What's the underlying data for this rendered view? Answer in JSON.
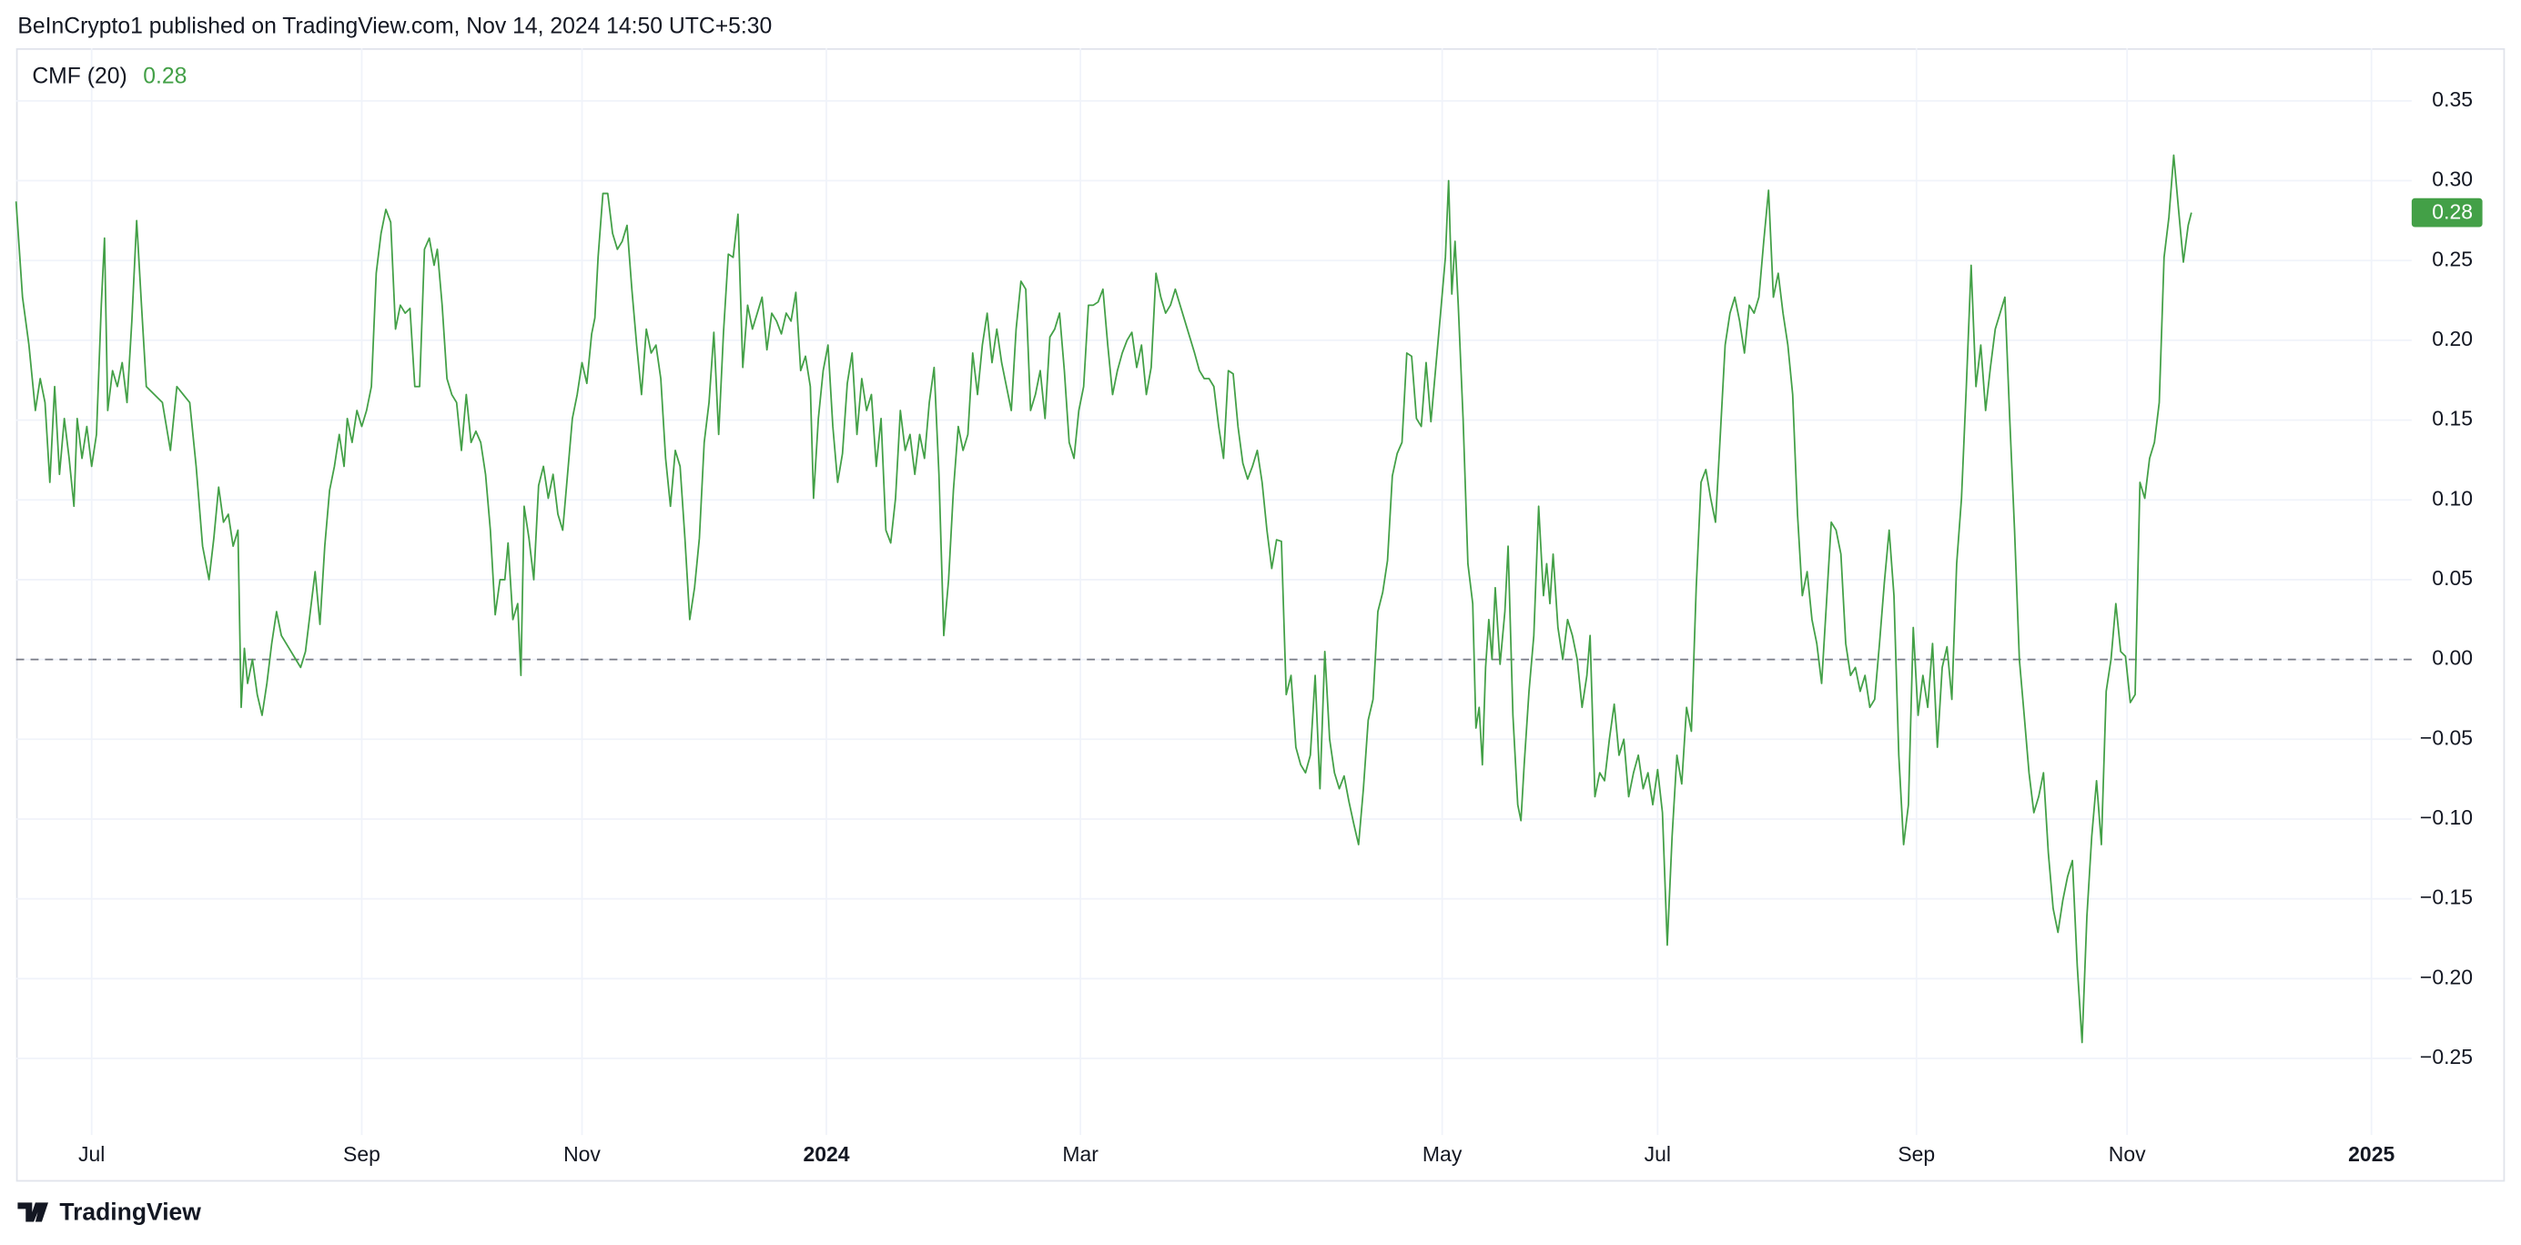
{
  "chart_data": {
    "type": "line",
    "title": "BeInCrypto1 published on TradingView.com, Nov 14, 2024 14:50 UTC+5:30",
    "branding": "TradingView",
    "last_value": 0.28,
    "grid": true,
    "dashed_zero_line": true,
    "xlim": [
      0,
      1490
    ],
    "xticks": [
      {
        "value": 47,
        "label": "Jul"
      },
      {
        "value": 215,
        "label": "Sep"
      },
      {
        "value": 352,
        "label": "Nov"
      },
      {
        "value": 504,
        "label": "2024"
      },
      {
        "value": 662,
        "label": "Mar"
      },
      {
        "value": 887,
        "label": "May"
      },
      {
        "value": 1021,
        "label": "Jul"
      },
      {
        "value": 1182,
        "label": "Sep"
      },
      {
        "value": 1313,
        "label": "Nov"
      },
      {
        "value": 1465,
        "label": "2025"
      }
    ],
    "ylim": [
      -0.298,
      0.383
    ],
    "yticks": [
      0.35,
      {
        "value": 0.3,
        "label": "0.30"
      },
      0.25,
      {
        "value": 0.2,
        "label": "0.20"
      },
      0.15,
      {
        "value": 0.1,
        "label": "0.10"
      },
      0.05,
      {
        "value": 0,
        "label": "0.00"
      },
      {
        "value": -0.05,
        "label": "−0.05"
      },
      {
        "value": -0.1,
        "label": "−0.10"
      },
      {
        "value": -0.15,
        "label": "−0.15"
      },
      {
        "value": -0.2,
        "label": "−0.20"
      },
      {
        "value": -0.25,
        "label": "−0.25"
      }
    ],
    "x": [
      0,
      4,
      8,
      12,
      15,
      18,
      21,
      24,
      27,
      30,
      33,
      36,
      38,
      41,
      44,
      47,
      50,
      53,
      55,
      57,
      60,
      63,
      66,
      69,
      72,
      75,
      78,
      81,
      86,
      91,
      96,
      100,
      104,
      108,
      112,
      116,
      120,
      123,
      126,
      129,
      132,
      135,
      138,
      140,
      142,
      144,
      147,
      150,
      153,
      156,
      159,
      162,
      165,
      168,
      171,
      174,
      177,
      180,
      183,
      186,
      189,
      192,
      195,
      198,
      201,
      204,
      206,
      209,
      212,
      215,
      218,
      221,
      224,
      227,
      230,
      233,
      236,
      239,
      242,
      245,
      248,
      251,
      254,
      257,
      260,
      262,
      265,
      268,
      271,
      274,
      277,
      280,
      283,
      286,
      289,
      292,
      295,
      298,
      301,
      304,
      306,
      309,
      312,
      314,
      316,
      319,
      322,
      325,
      328,
      331,
      334,
      337,
      340,
      343,
      346,
      349,
      352,
      355,
      358,
      360,
      362,
      365,
      368,
      371,
      374,
      377,
      380,
      383,
      386,
      389,
      392,
      395,
      398,
      401,
      404,
      407,
      410,
      413,
      416,
      419,
      422,
      425,
      428,
      431,
      434,
      437,
      440,
      443,
      446,
      449,
      452,
      455,
      458,
      461,
      464,
      467,
      470,
      473,
      476,
      479,
      482,
      485,
      488,
      491,
      494,
      496,
      499,
      502,
      505,
      508,
      511,
      514,
      517,
      520,
      523,
      526,
      529,
      532,
      535,
      538,
      541,
      544,
      547,
      550,
      553,
      556,
      559,
      562,
      565,
      568,
      571,
      574,
      577,
      580,
      583,
      586,
      589,
      592,
      595,
      598,
      601,
      604,
      607,
      610,
      613,
      616,
      619,
      622,
      625,
      628,
      631,
      634,
      637,
      640,
      643,
      646,
      649,
      652,
      655,
      658,
      661,
      664,
      667,
      670,
      673,
      676,
      679,
      682,
      685,
      688,
      691,
      694,
      697,
      700,
      703,
      706,
      709,
      712,
      715,
      718,
      721,
      724,
      727,
      730,
      733,
      736,
      739,
      742,
      745,
      748,
      751,
      754,
      757,
      760,
      763,
      766,
      769,
      772,
      775,
      778,
      781,
      784,
      787,
      790,
      793,
      796,
      799,
      802,
      805,
      808,
      811,
      814,
      817,
      820,
      823,
      826,
      829,
      832,
      835,
      838,
      841,
      844,
      847,
      850,
      853,
      856,
      859,
      862,
      865,
      868,
      871,
      874,
      877,
      880,
      883,
      886,
      889,
      891,
      893,
      895,
      897,
      900,
      903,
      906,
      908,
      910,
      912,
      914,
      916,
      918,
      920,
      923,
      926,
      928,
      931,
      934,
      936,
      938,
      941,
      944,
      947,
      950,
      952,
      954,
      956,
      959,
      962,
      965,
      968,
      971,
      974,
      977,
      979,
      982,
      985,
      988,
      991,
      994,
      997,
      1000,
      1003,
      1006,
      1009,
      1012,
      1015,
      1018,
      1021,
      1024,
      1027,
      1030,
      1033,
      1036,
      1039,
      1042,
      1045,
      1048,
      1051,
      1054,
      1057,
      1060,
      1063,
      1066,
      1069,
      1072,
      1075,
      1078,
      1081,
      1084,
      1087,
      1090,
      1093,
      1096,
      1099,
      1102,
      1105,
      1108,
      1111,
      1114,
      1117,
      1120,
      1123,
      1126,
      1129,
      1132,
      1135,
      1138,
      1141,
      1144,
      1147,
      1150,
      1153,
      1156,
      1159,
      1162,
      1165,
      1168,
      1171,
      1174,
      1177,
      1180,
      1183,
      1186,
      1189,
      1192,
      1195,
      1198,
      1201,
      1204,
      1207,
      1210,
      1213,
      1216,
      1219,
      1222,
      1225,
      1228,
      1231,
      1234,
      1237,
      1240,
      1243,
      1246,
      1249,
      1252,
      1255,
      1258,
      1261,
      1264,
      1267,
      1270,
      1273,
      1276,
      1279,
      1282,
      1285,
      1288,
      1291,
      1294,
      1297,
      1300,
      1303,
      1306,
      1309,
      1312,
      1315,
      1318,
      1321,
      1324,
      1327,
      1330,
      1333,
      1336,
      1339,
      1342,
      1345,
      1348,
      1351,
      1353
    ],
    "series": [
      {
        "name": "CMF (20)",
        "color": "#43a047",
        "values": [
          0.287,
          0.227,
          0.197,
          0.156,
          0.176,
          0.161,
          0.111,
          0.171,
          0.116,
          0.151,
          0.126,
          0.096,
          0.151,
          0.126,
          0.146,
          0.121,
          0.141,
          0.222,
          0.264,
          0.156,
          0.181,
          0.171,
          0.186,
          0.161,
          0.212,
          0.275,
          0.222,
          0.171,
          0.166,
          0.161,
          0.131,
          0.171,
          0.166,
          0.161,
          0.121,
          0.071,
          0.05,
          0.076,
          0.108,
          0.086,
          0.091,
          0.071,
          0.081,
          -0.03,
          0.007,
          -0.015,
          0,
          -0.022,
          -0.035,
          -0.015,
          0.01,
          0.03,
          0.015,
          0.01,
          0.005,
          0,
          -0.005,
          0.005,
          0.03,
          0.055,
          0.022,
          0.071,
          0.106,
          0.121,
          0.141,
          0.121,
          0.151,
          0.136,
          0.156,
          0.146,
          0.156,
          0.171,
          0.242,
          0.267,
          0.282,
          0.274,
          0.207,
          0.222,
          0.217,
          0.22,
          0.171,
          0.171,
          0.257,
          0.264,
          0.247,
          0.257,
          0.222,
          0.176,
          0.166,
          0.161,
          0.131,
          0.166,
          0.136,
          0.143,
          0.136,
          0.116,
          0.081,
          0.028,
          0.05,
          0.05,
          0.073,
          0.025,
          0.035,
          -0.01,
          0.096,
          0.076,
          0.05,
          0.109,
          0.121,
          0.101,
          0.116,
          0.091,
          0.081,
          0.116,
          0.151,
          0.166,
          0.186,
          0.173,
          0.204,
          0.214,
          0.252,
          0.292,
          0.292,
          0.267,
          0.257,
          0.262,
          0.272,
          0.232,
          0.197,
          0.166,
          0.207,
          0.192,
          0.197,
          0.176,
          0.126,
          0.096,
          0.131,
          0.121,
          0.076,
          0.025,
          0.045,
          0.076,
          0.136,
          0.161,
          0.205,
          0.141,
          0.205,
          0.254,
          0.252,
          0.279,
          0.183,
          0.222,
          0.207,
          0.217,
          0.227,
          0.194,
          0.217,
          0.212,
          0.204,
          0.217,
          0.212,
          0.23,
          0.181,
          0.19,
          0.171,
          0.101,
          0.151,
          0.181,
          0.197,
          0.146,
          0.111,
          0.129,
          0.173,
          0.192,
          0.141,
          0.176,
          0.156,
          0.166,
          0.121,
          0.151,
          0.081,
          0.073,
          0.101,
          0.156,
          0.131,
          0.141,
          0.116,
          0.141,
          0.126,
          0.161,
          0.183,
          0.116,
          0.015,
          0.05,
          0.106,
          0.146,
          0.131,
          0.141,
          0.192,
          0.166,
          0.197,
          0.217,
          0.186,
          0.207,
          0.186,
          0.171,
          0.156,
          0.207,
          0.237,
          0.232,
          0.156,
          0.166,
          0.181,
          0.151,
          0.202,
          0.207,
          0.217,
          0.181,
          0.136,
          0.126,
          0.156,
          0.171,
          0.222,
          0.222,
          0.224,
          0.232,
          0.197,
          0.166,
          0.181,
          0.192,
          0.2,
          0.205,
          0.183,
          0.197,
          0.166,
          0.183,
          0.242,
          0.227,
          0.217,
          0.222,
          0.232,
          0.222,
          0.212,
          0.202,
          0.192,
          0.181,
          0.176,
          0.176,
          0.171,
          0.146,
          0.126,
          0.181,
          0.179,
          0.146,
          0.123,
          0.113,
          0.121,
          0.131,
          0.111,
          0.081,
          0.057,
          0.075,
          0.074,
          -0.022,
          -0.01,
          -0.055,
          -0.066,
          -0.071,
          -0.06,
          -0.01,
          -0.081,
          0.005,
          -0.05,
          -0.071,
          -0.081,
          -0.073,
          -0.089,
          -0.103,
          -0.116,
          -0.081,
          -0.038,
          -0.025,
          0.03,
          0.042,
          0.062,
          0.115,
          0.129,
          0.136,
          0.192,
          0.19,
          0.151,
          0.146,
          0.186,
          0.149,
          0.183,
          0.217,
          0.252,
          0.3,
          0.229,
          0.262,
          0.222,
          0.151,
          0.06,
          0.035,
          -0.043,
          -0.03,
          -0.066,
          -0.005,
          0.025,
          0,
          0.045,
          -0.003,
          0.03,
          0.071,
          -0.035,
          -0.091,
          -0.101,
          -0.066,
          -0.02,
          0.015,
          0.096,
          0.04,
          0.06,
          0.035,
          0.066,
          0.02,
          0,
          0.025,
          0.015,
          0,
          -0.03,
          -0.01,
          0.015,
          -0.086,
          -0.071,
          -0.076,
          -0.05,
          -0.028,
          -0.06,
          -0.05,
          -0.086,
          -0.071,
          -0.06,
          -0.081,
          -0.071,
          -0.091,
          -0.069,
          -0.096,
          -0.179,
          -0.111,
          -0.06,
          -0.078,
          -0.03,
          -0.045,
          0.045,
          0.111,
          0.119,
          0.101,
          0.086,
          0.141,
          0.197,
          0.217,
          0.227,
          0.212,
          0.192,
          0.222,
          0.217,
          0.227,
          0.262,
          0.294,
          0.227,
          0.242,
          0.217,
          0.197,
          0.166,
          0.091,
          0.04,
          0.055,
          0.025,
          0.01,
          -0.015,
          0.035,
          0.086,
          0.081,
          0.066,
          0.01,
          -0.01,
          -0.005,
          -0.02,
          -0.01,
          -0.03,
          -0.025,
          0.01,
          0.048,
          0.081,
          0.04,
          -0.06,
          -0.116,
          -0.091,
          0.02,
          -0.035,
          -0.01,
          -0.03,
          0.01,
          -0.055,
          -0.005,
          0.008,
          -0.025,
          0.06,
          0.101,
          0.171,
          0.247,
          0.171,
          0.197,
          0.156,
          0.183,
          0.207,
          0.217,
          0.227,
          0.151,
          0.081,
          0,
          -0.035,
          -0.071,
          -0.096,
          -0.086,
          -0.071,
          -0.121,
          -0.156,
          -0.171,
          -0.151,
          -0.136,
          -0.126,
          -0.192,
          -0.24,
          -0.161,
          -0.111,
          -0.076,
          -0.116,
          -0.02,
          0,
          0.035,
          0.005,
          0.002,
          -0.027,
          -0.022,
          0.111,
          0.101,
          0.126,
          0.136,
          0.161,
          0.252,
          0.277,
          0.316,
          0.282,
          0.249,
          0.272,
          0.28
        ]
      }
    ]
  }
}
